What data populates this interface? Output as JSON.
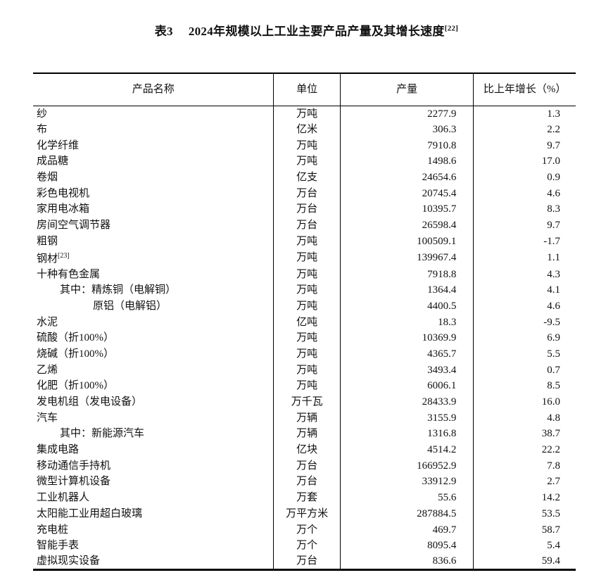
{
  "title": {
    "label": "表3",
    "text": "2024年规模以上工业主要产品产量及其增长速度",
    "note": "[22]"
  },
  "headers": [
    "产品名称",
    "单位",
    "产量",
    "比上年增长（%）"
  ],
  "rows": [
    {
      "name": "纱",
      "unit": "万吨",
      "output": "2277.9",
      "growth": "1.3"
    },
    {
      "name": "布",
      "unit": "亿米",
      "output": "306.3",
      "growth": "2.2"
    },
    {
      "name": "化学纤维",
      "unit": "万吨",
      "output": "7910.8",
      "growth": "9.7"
    },
    {
      "name": "成品糖",
      "unit": "万吨",
      "output": "1498.6",
      "growth": "17.0"
    },
    {
      "name": "卷烟",
      "unit": "亿支",
      "output": "24654.6",
      "growth": "0.9"
    },
    {
      "name": "彩色电视机",
      "unit": "万台",
      "output": "20745.4",
      "growth": "4.6"
    },
    {
      "name": "家用电冰箱",
      "unit": "万台",
      "output": "10395.7",
      "growth": "8.3"
    },
    {
      "name": "房间空气调节器",
      "unit": "万台",
      "output": "26598.4",
      "growth": "9.7"
    },
    {
      "name": "粗钢",
      "unit": "万吨",
      "output": "100509.1",
      "growth": "-1.7"
    },
    {
      "name": "钢材",
      "note": "[23]",
      "unit": "万吨",
      "output": "139967.4",
      "growth": "1.1"
    },
    {
      "name": "十种有色金属",
      "unit": "万吨",
      "output": "7918.8",
      "growth": "4.3"
    },
    {
      "name": "其中：精炼铜（电解铜）",
      "indent": 1,
      "unit": "万吨",
      "output": "1364.4",
      "growth": "4.1"
    },
    {
      "name": "原铝（电解铝）",
      "indent": 2,
      "unit": "万吨",
      "output": "4400.5",
      "growth": "4.6"
    },
    {
      "name": "水泥",
      "unit": "亿吨",
      "output": "18.3",
      "growth": "-9.5"
    },
    {
      "name": "硫酸（折100%）",
      "unit": "万吨",
      "output": "10369.9",
      "growth": "6.9"
    },
    {
      "name": "烧碱（折100%）",
      "unit": "万吨",
      "output": "4365.7",
      "growth": "5.5"
    },
    {
      "name": "乙烯",
      "unit": "万吨",
      "output": "3493.4",
      "growth": "0.7"
    },
    {
      "name": "化肥（折100%）",
      "unit": "万吨",
      "output": "6006.1",
      "growth": "8.5"
    },
    {
      "name": "发电机组（发电设备）",
      "unit": "万千瓦",
      "output": "28433.9",
      "growth": "16.0"
    },
    {
      "name": "汽车",
      "unit": "万辆",
      "output": "3155.9",
      "growth": "4.8"
    },
    {
      "name": "其中：新能源汽车",
      "indent": 1,
      "unit": "万辆",
      "output": "1316.8",
      "growth": "38.7"
    },
    {
      "name": "集成电路",
      "unit": "亿块",
      "output": "4514.2",
      "growth": "22.2"
    },
    {
      "name": "移动通信手持机",
      "unit": "万台",
      "output": "166952.9",
      "growth": "7.8"
    },
    {
      "name": "微型计算机设备",
      "unit": "万台",
      "output": "33912.9",
      "growth": "2.7"
    },
    {
      "name": "工业机器人",
      "unit": "万套",
      "output": "55.6",
      "growth": "14.2"
    },
    {
      "name": "太阳能工业用超白玻璃",
      "unit": "万平方米",
      "output": "287884.5",
      "growth": "53.5"
    },
    {
      "name": "充电桩",
      "unit": "万个",
      "output": "469.7",
      "growth": "58.7"
    },
    {
      "name": "智能手表",
      "unit": "万个",
      "output": "8095.4",
      "growth": "5.4"
    },
    {
      "name": "虚拟现实设备",
      "unit": "万台",
      "output": "836.6",
      "growth": "59.4"
    }
  ]
}
